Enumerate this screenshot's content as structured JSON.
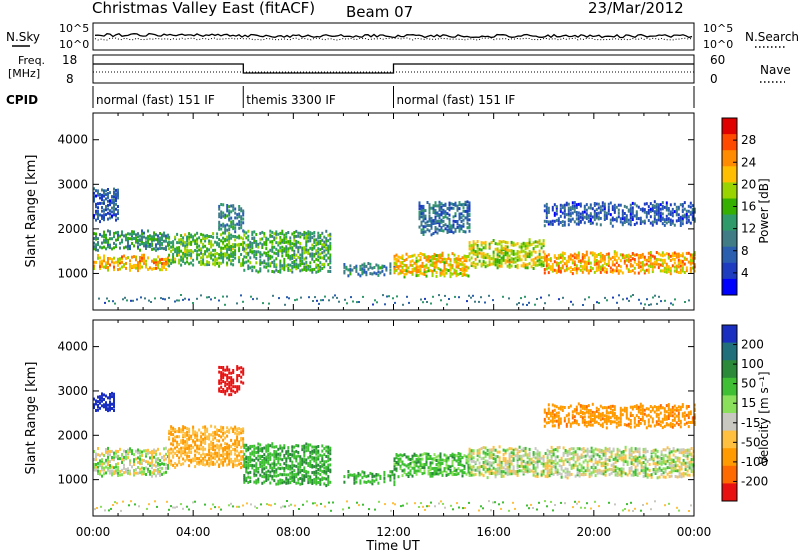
{
  "header": {
    "title": "Christmas Valley East (fitACF)",
    "beam": "Beam 07",
    "date": "23/Mar/2012"
  },
  "strip_labels": {
    "nsky": "N.Sky",
    "nsky_hi": "10^5",
    "nsky_lo": "10^0",
    "nsearch": "N.Search",
    "nsearch_hi": "10^5",
    "nsearch_lo": "10^0",
    "freq": "Freq.",
    "freq_unit": "[MHz]",
    "freq_hi": "18",
    "freq_lo": "8",
    "nave": "Nave",
    "nave_hi": "60",
    "nave_lo": "0",
    "cpid": "CPID"
  },
  "cpid_segments": [
    {
      "label": "normal (fast) 151 IF",
      "start": 0,
      "end": 6
    },
    {
      "label": "themis 3300 IF",
      "start": 6,
      "end": 12
    },
    {
      "label": "normal (fast) 151 IF",
      "start": 12,
      "end": 24
    }
  ],
  "axes": {
    "ylabel": "Slant Range [km]",
    "xlabel": "Time UT",
    "yticks": [
      "1000",
      "2000",
      "3000",
      "4000"
    ],
    "ytick_values": [
      1000,
      2000,
      3000,
      4000
    ],
    "xticks": [
      "00:00",
      "04:00",
      "08:00",
      "12:00",
      "16:00",
      "20:00",
      "00:00"
    ],
    "xtick_values": [
      0,
      4,
      8,
      12,
      16,
      20,
      24
    ],
    "x_range_hours": [
      0,
      24
    ],
    "y_range_km": [
      180,
      4600
    ]
  },
  "colorbars": {
    "power": {
      "label": "Power [dB]",
      "ticks": [
        "28",
        "24",
        "20",
        "16",
        "12",
        "8",
        "4"
      ],
      "colors": [
        "#e00000",
        "#ff4a00",
        "#ff8c00",
        "#ffbe00",
        "#9ad400",
        "#36b000",
        "#2f9b6a",
        "#3f7c86",
        "#2a5fb0",
        "#1e3cc0",
        "#0000ff"
      ]
    },
    "velocity": {
      "label": "Velocity [m s⁻¹]",
      "ticks": [
        "200",
        "100",
        "50",
        "15",
        "-15",
        "-50",
        "-100",
        "-200"
      ],
      "colors": [
        "#1a2fc0",
        "#226f7c",
        "#2a8a3a",
        "#3fbf33",
        "#8ae05a",
        "#c8c8c0",
        "#ffc040",
        "#ff9a00",
        "#ff6a00",
        "#e81010"
      ]
    }
  },
  "chart_data": [
    {
      "type": "heatmap",
      "title": "Power",
      "xlabel": "Time UT",
      "ylabel": "Slant Range [km]",
      "xlim_hours": [
        0,
        24
      ],
      "ylim_km": [
        180,
        4600
      ],
      "colorbar": "Power [dB]",
      "bands": [
        {
          "t0": 0.0,
          "t1": 3.0,
          "r_center": 1300,
          "r_width": 300,
          "value_db": 24
        },
        {
          "t0": 0.0,
          "t1": 3.0,
          "r_center": 1800,
          "r_width": 400,
          "value_db": 12
        },
        {
          "t0": 0.0,
          "t1": 1.0,
          "r_center": 2600,
          "r_width": 700,
          "value_db": 6
        },
        {
          "t0": 3.0,
          "t1": 6.0,
          "r_center": 1600,
          "r_width": 700,
          "value_db": 16
        },
        {
          "t0": 5.0,
          "t1": 6.0,
          "r_center": 2300,
          "r_width": 600,
          "value_db": 10
        },
        {
          "t0": 6.0,
          "t1": 9.5,
          "r_center": 1550,
          "r_width": 900,
          "value_db": 14
        },
        {
          "t0": 10.0,
          "t1": 12.0,
          "r_center": 1150,
          "r_width": 250,
          "value_db": 10
        },
        {
          "t0": 12.0,
          "t1": 15.0,
          "r_center": 1250,
          "r_width": 500,
          "value_db": 22
        },
        {
          "t0": 13.0,
          "t1": 15.0,
          "r_center": 2300,
          "r_width": 700,
          "value_db": 8
        },
        {
          "t0": 15.0,
          "t1": 18.0,
          "r_center": 1500,
          "r_width": 600,
          "value_db": 20
        },
        {
          "t0": 18.0,
          "t1": 24.0,
          "r_center": 1300,
          "r_width": 450,
          "value_db": 24
        },
        {
          "t0": 18.0,
          "t1": 24.0,
          "r_center": 2400,
          "r_width": 500,
          "value_db": 6
        }
      ]
    },
    {
      "type": "heatmap",
      "title": "Velocity",
      "xlabel": "Time UT",
      "ylabel": "Slant Range [km]",
      "xlim_hours": [
        0,
        24
      ],
      "ylim_km": [
        180,
        4600
      ],
      "colorbar": "Velocity [m s⁻¹]",
      "bands": [
        {
          "t0": 0.0,
          "t1": 3.0,
          "r_center": 1450,
          "r_width": 600,
          "value_ms": 0
        },
        {
          "t0": 0.0,
          "t1": 0.8,
          "r_center": 2800,
          "r_width": 400,
          "value_ms": 200
        },
        {
          "t0": 3.0,
          "t1": 6.0,
          "r_center": 1800,
          "r_width": 900,
          "value_ms": -30
        },
        {
          "t0": 5.0,
          "t1": 6.0,
          "r_center": 3300,
          "r_width": 600,
          "value_ms": -200
        },
        {
          "t0": 6.0,
          "t1": 9.5,
          "r_center": 1400,
          "r_width": 900,
          "value_ms": 30
        },
        {
          "t0": 10.0,
          "t1": 12.0,
          "r_center": 1100,
          "r_width": 250,
          "value_ms": 30
        },
        {
          "t0": 12.0,
          "t1": 15.0,
          "r_center": 1400,
          "r_width": 500,
          "value_ms": 20
        },
        {
          "t0": 15.0,
          "t1": 24.0,
          "r_center": 1450,
          "r_width": 650,
          "value_ms": 0
        },
        {
          "t0": 18.0,
          "t1": 24.0,
          "r_center": 2500,
          "r_width": 500,
          "value_ms": -60
        }
      ]
    }
  ]
}
